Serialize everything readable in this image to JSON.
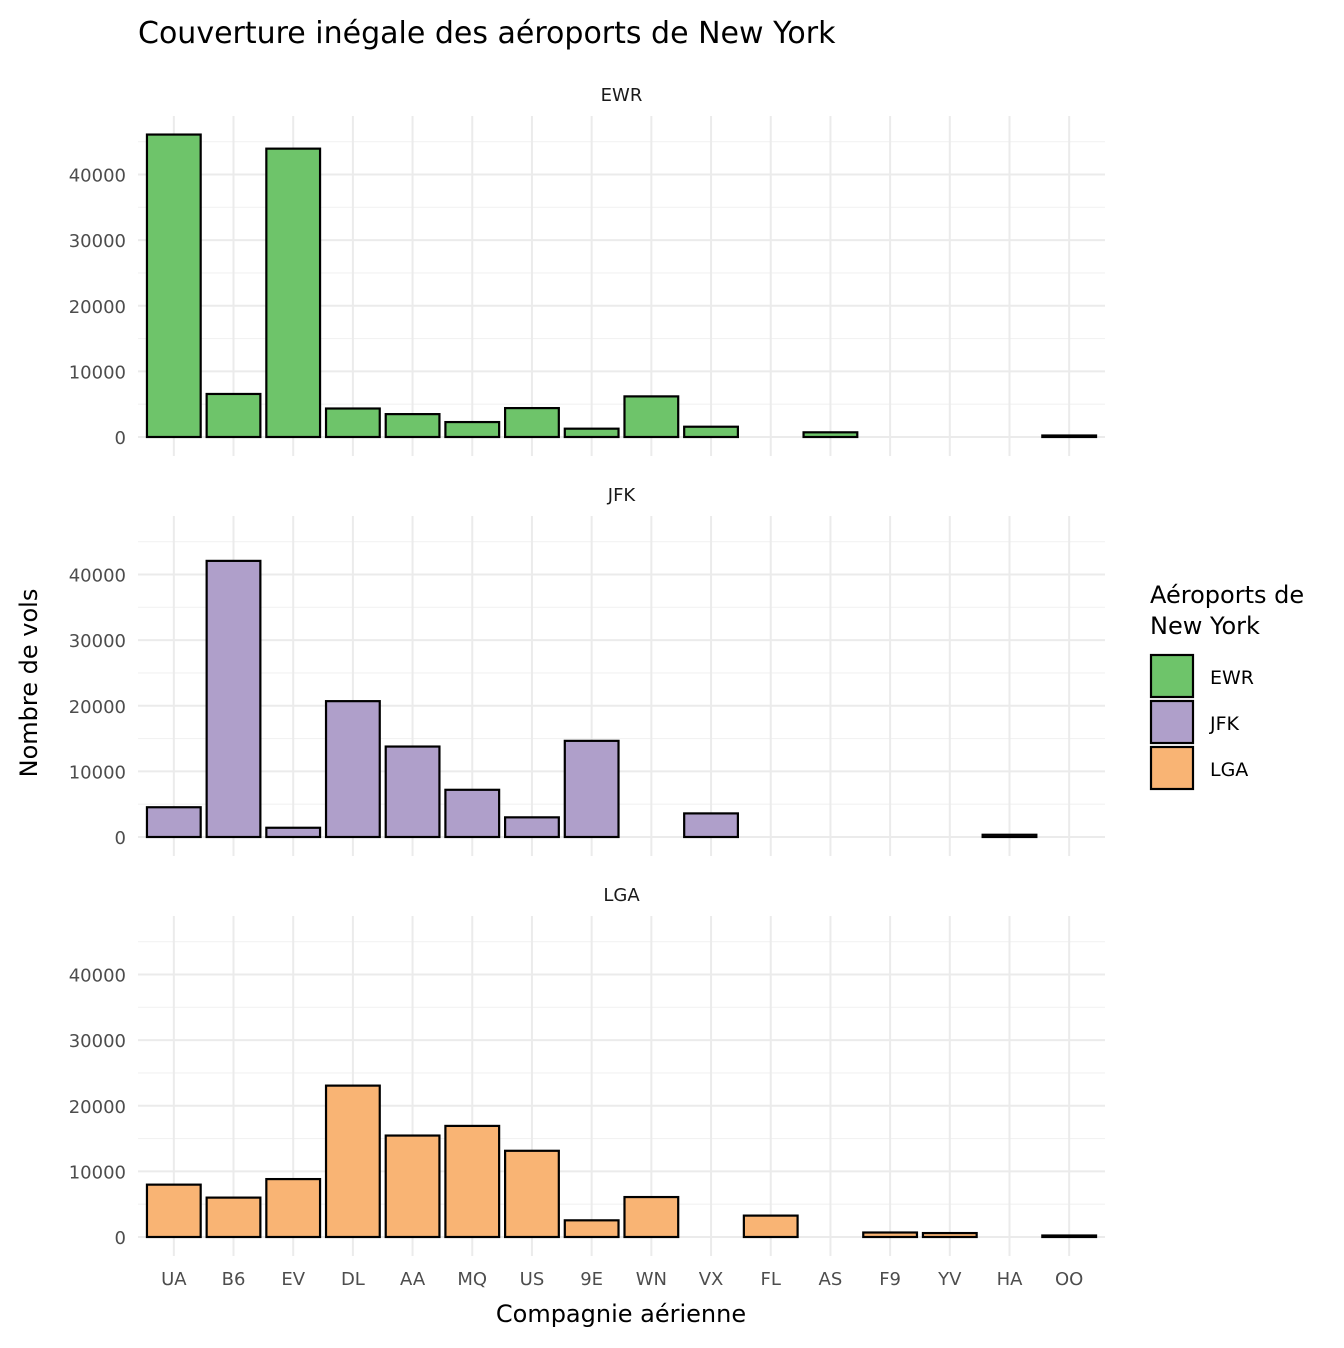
{
  "chart_data": {
    "type": "bar",
    "layout": "faceted-vertical",
    "title": "Couverture inégale des aéroports de New York",
    "xlabel": "Compagnie aérienne",
    "ylabel": "Nombre de vols",
    "ylim": [
      0,
      48000
    ],
    "yticks": [
      0,
      10000,
      20000,
      30000,
      40000
    ],
    "grid": true,
    "categories": [
      "UA",
      "B6",
      "EV",
      "DL",
      "AA",
      "MQ",
      "US",
      "9E",
      "WN",
      "VX",
      "FL",
      "AS",
      "F9",
      "YV",
      "HA",
      "OO"
    ],
    "legend": {
      "title": [
        "Aéroports de",
        "New York"
      ],
      "position": "right"
    },
    "series": [
      {
        "name": "EWR",
        "color": "#6EC46A",
        "values": [
          46087,
          6557,
          43939,
          4342,
          3487,
          2276,
          4405,
          1268,
          6188,
          1566,
          null,
          714,
          null,
          null,
          null,
          6
        ]
      },
      {
        "name": "JFK",
        "color": "#AF9FCA",
        "values": [
          4534,
          42076,
          1408,
          20701,
          13783,
          7193,
          2995,
          14651,
          null,
          3596,
          null,
          null,
          null,
          null,
          342,
          null
        ]
      },
      {
        "name": "LGA",
        "color": "#F9B474",
        "values": [
          7978,
          6002,
          8826,
          23067,
          15459,
          16928,
          13136,
          2541,
          6087,
          null,
          3260,
          null,
          685,
          601,
          null,
          26
        ]
      }
    ]
  }
}
